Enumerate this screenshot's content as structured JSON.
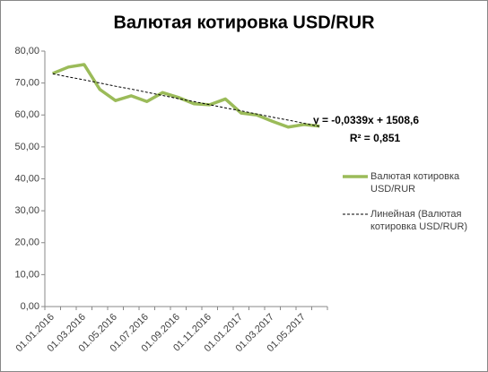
{
  "chart_data": {
    "type": "line",
    "title": "Валютая котировка USD/RUR",
    "categories": [
      "01.01.2016",
      null,
      "01.03.2016",
      null,
      "01.05.2016",
      null,
      "01.07.2016",
      null,
      "01.09.2016",
      null,
      "01.11.2016",
      null,
      "01.01.2017",
      null,
      "01.03.2017",
      null,
      "01.05.2017",
      null
    ],
    "series": [
      {
        "name": "Валютая котировка USD/RUR",
        "color": "#9bbb59",
        "values": [
          73,
          75,
          75.8,
          68,
          64.5,
          66,
          64.2,
          67,
          65.5,
          63.5,
          63.2,
          65,
          60.6,
          60,
          58,
          56.2,
          57,
          56.5
        ]
      },
      {
        "name": "Линейная (Валютая котировка USD/RUR)",
        "color": "#000000",
        "dashed": true,
        "values": [
          72.9,
          71.9,
          71.0,
          70.0,
          69.0,
          68.1,
          67.1,
          66.1,
          65.1,
          64.2,
          63.2,
          62.2,
          61.3,
          60.3,
          59.3,
          58.4,
          57.4,
          56.4
        ]
      }
    ],
    "trendline_equation": "y = -0,0339x + 1508,6",
    "r_squared": "R² = 0,851",
    "ylim": [
      0,
      80
    ],
    "yticks": [
      {
        "value": 0,
        "label": "0,00"
      },
      {
        "value": 10,
        "label": "10,00"
      },
      {
        "value": 20,
        "label": "20,00"
      },
      {
        "value": 30,
        "label": "30,00"
      },
      {
        "value": 40,
        "label": "40,00"
      },
      {
        "value": 50,
        "label": "50,00"
      },
      {
        "value": 60,
        "label": "60,00"
      },
      {
        "value": 70,
        "label": "70,00"
      },
      {
        "value": 80,
        "label": "80,00"
      }
    ],
    "grid": false
  }
}
